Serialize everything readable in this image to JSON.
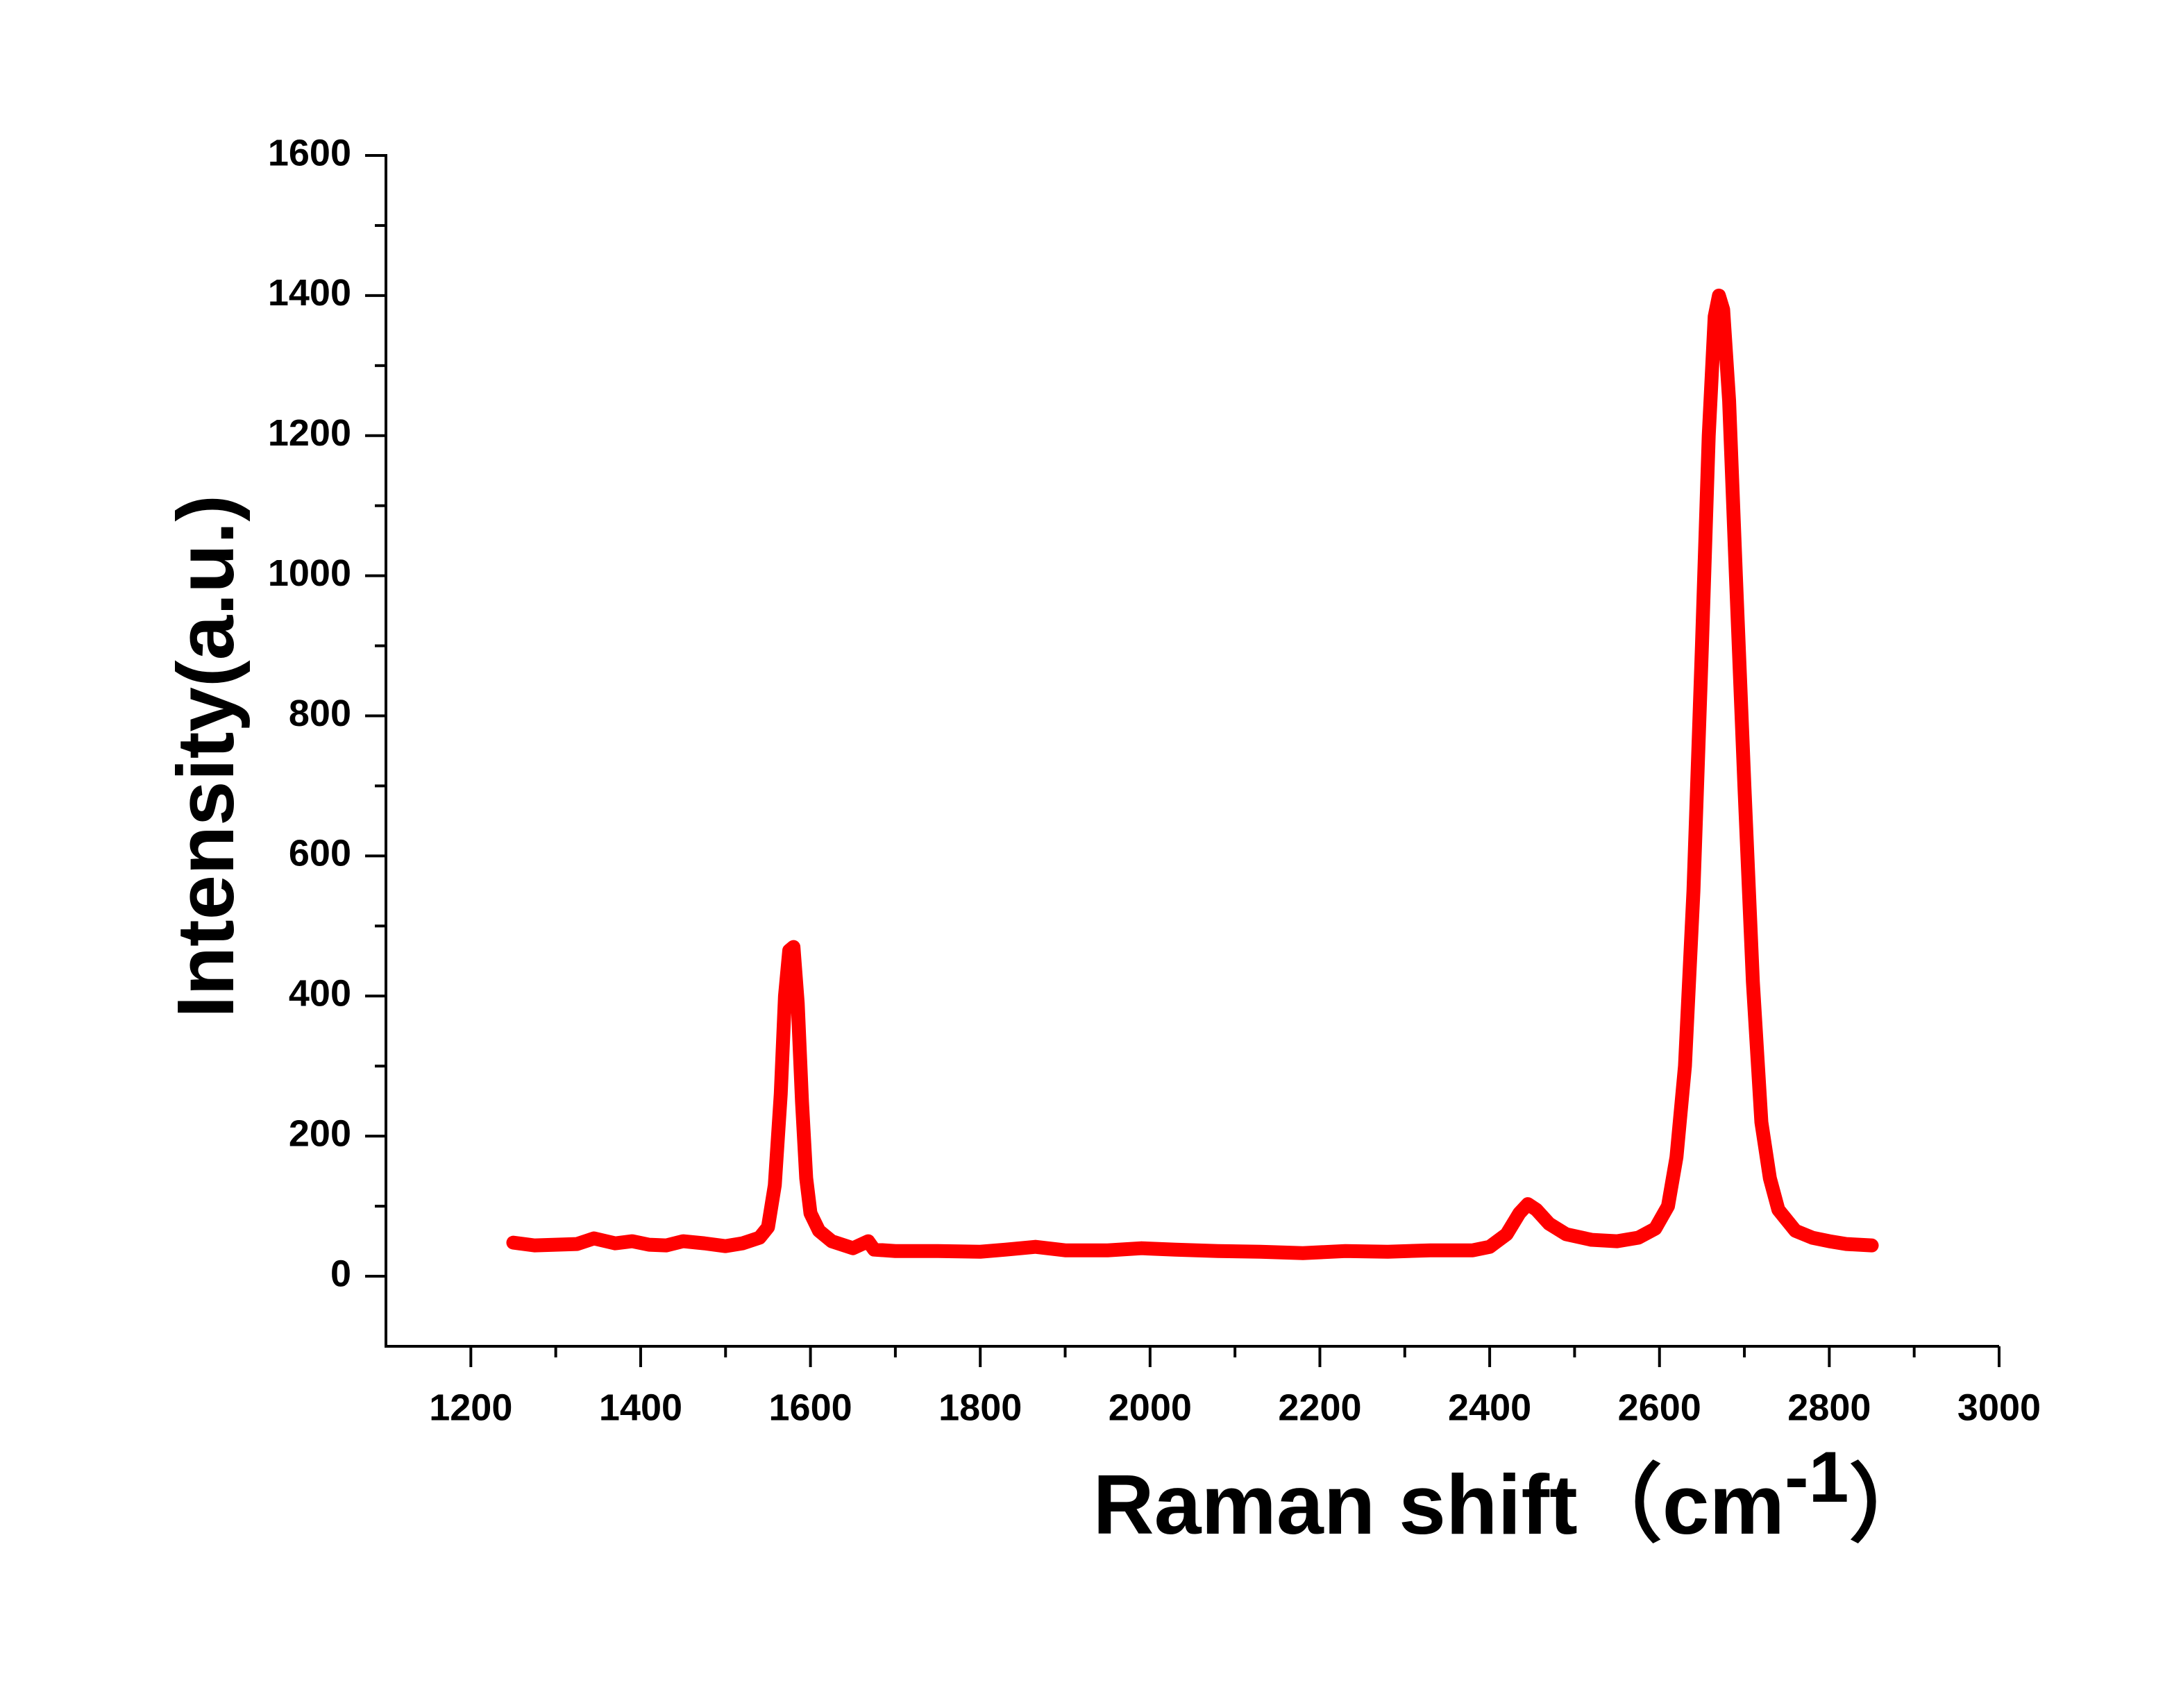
{
  "chart_data": {
    "type": "line",
    "x_label": {
      "text": "Raman shift（cm",
      "superscript": "-1",
      "suffix": "）"
    },
    "y_label": "Intensity(a.u.)",
    "x": [
      1250,
      1275,
      1300,
      1325,
      1345,
      1370,
      1390,
      1410,
      1430,
      1450,
      1475,
      1500,
      1520,
      1540,
      1550,
      1558,
      1565,
      1570,
      1575,
      1580,
      1585,
      1590,
      1595,
      1600,
      1610,
      1625,
      1650,
      1668,
      1675,
      1700,
      1750,
      1800,
      1830,
      1865,
      1900,
      1950,
      1990,
      2030,
      2080,
      2130,
      2180,
      2230,
      2280,
      2330,
      2380,
      2400,
      2420,
      2435,
      2445,
      2455,
      2470,
      2490,
      2520,
      2550,
      2575,
      2595,
      2610,
      2620,
      2630,
      2640,
      2650,
      2658,
      2665,
      2670,
      2675,
      2682,
      2690,
      2700,
      2710,
      2720,
      2730,
      2740,
      2760,
      2780,
      2800,
      2820,
      2850
    ],
    "series": [
      {
        "color": "#ff0000",
        "values": [
          48,
          44,
          45,
          46,
          54,
          47,
          50,
          45,
          44,
          50,
          47,
          43,
          47,
          55,
          70,
          130,
          260,
          400,
          465,
          470,
          390,
          250,
          140,
          90,
          65,
          50,
          40,
          50,
          38,
          36,
          36,
          35,
          38,
          42,
          37,
          37,
          40,
          38,
          36,
          35,
          33,
          36,
          35,
          37,
          37,
          42,
          60,
          90,
          103,
          95,
          75,
          60,
          52,
          50,
          55,
          68,
          100,
          170,
          300,
          550,
          900,
          1200,
          1370,
          1400,
          1380,
          1250,
          1000,
          700,
          420,
          220,
          140,
          95,
          65,
          55,
          50,
          46,
          44
        ]
      }
    ],
    "xlim": [
      1100,
      3000
    ],
    "xticks": [
      1200,
      1400,
      1600,
      1800,
      2000,
      2200,
      2400,
      2600,
      2800,
      3000
    ],
    "ylim": [
      -100,
      1600
    ],
    "yticks": [
      0,
      200,
      400,
      600,
      800,
      1000,
      1200,
      1400,
      1600
    ]
  }
}
